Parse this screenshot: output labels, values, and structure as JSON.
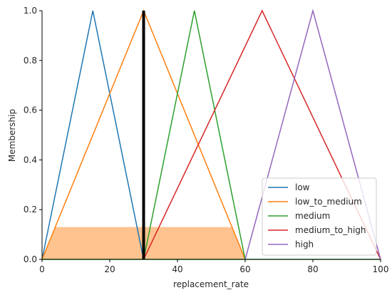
{
  "chart_data": {
    "type": "line",
    "xlabel": "replacement_rate",
    "ylabel": "Membership",
    "xlim": [
      0,
      100
    ],
    "ylim": [
      0,
      1.0
    ],
    "xticks": [
      "0",
      "20",
      "40",
      "60",
      "80",
      "100"
    ],
    "yticks": [
      "0.0",
      "0.2",
      "0.4",
      "0.6",
      "0.8",
      "1.0"
    ],
    "legend_position": "lower-right",
    "series": [
      {
        "name": "low",
        "color": "#1f77b4",
        "x": [
          0,
          15,
          30
        ],
        "y": [
          0,
          1,
          0
        ]
      },
      {
        "name": "low_to_medium",
        "color": "#ff7f0e",
        "x": [
          0,
          30,
          60
        ],
        "y": [
          0,
          1,
          0
        ]
      },
      {
        "name": "medium",
        "color": "#2ca02c",
        "x": [
          30,
          45,
          60
        ],
        "y": [
          0,
          1,
          0
        ]
      },
      {
        "name": "medium_to_high",
        "color": "#d62728",
        "x": [
          30,
          65,
          100
        ],
        "y": [
          0,
          1,
          0
        ]
      },
      {
        "name": "high",
        "color": "#9467bd",
        "x": [
          60,
          80,
          100
        ],
        "y": [
          0,
          1,
          0
        ]
      }
    ],
    "activation": {
      "series": "low_to_medium",
      "level": 0.13,
      "color": "#ffc38f",
      "x_range": [
        0,
        60
      ]
    },
    "crisp_output": {
      "x": 30,
      "color": "#000000"
    },
    "baseline": {
      "y": 0,
      "color": "#2ca02c"
    }
  }
}
